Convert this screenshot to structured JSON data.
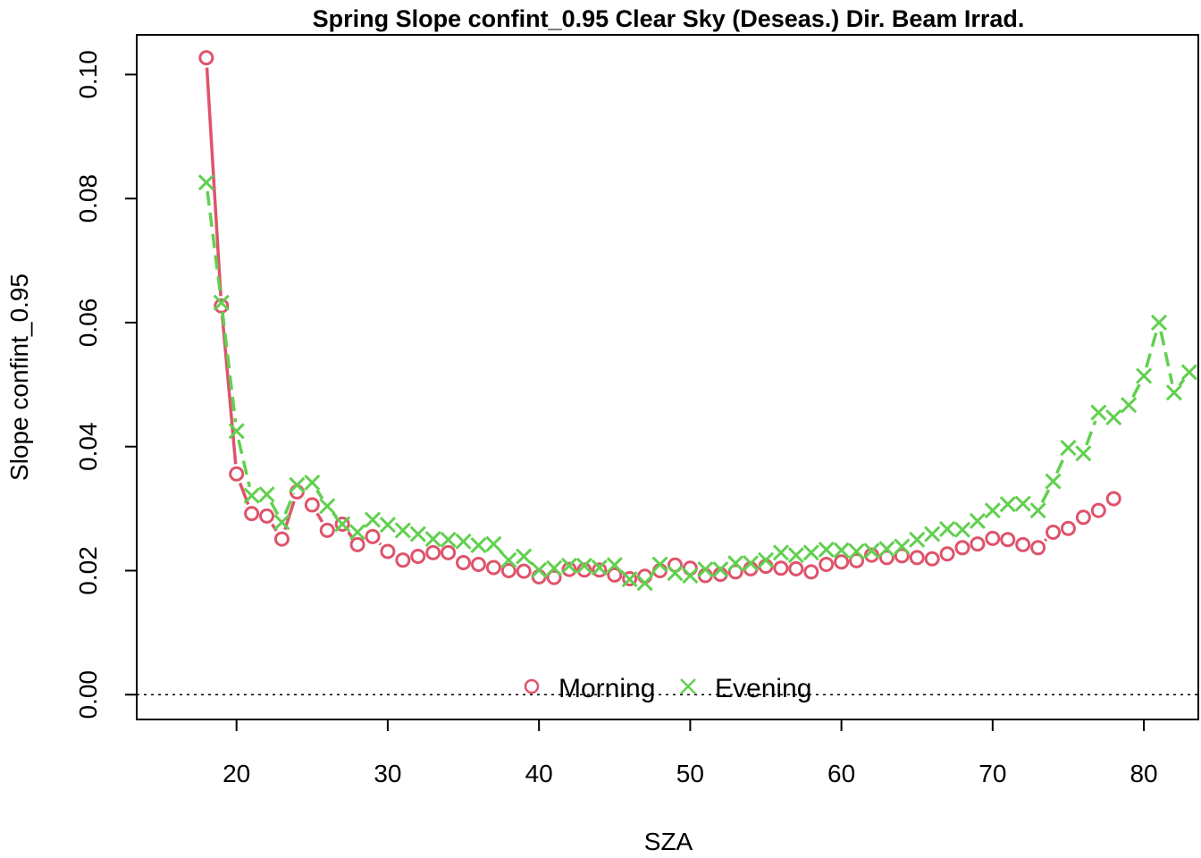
{
  "chart_data": {
    "type": "scatter",
    "title": "Spring Slope confint_0.95 Clear Sky (Deseas.) Dir. Beam Irrad.",
    "xlabel": "SZA",
    "ylabel": "Slope confint_0.95",
    "xlim": [
      13.4,
      83.6
    ],
    "ylim": [
      -0.004,
      0.1064
    ],
    "x_ticks": [
      20,
      30,
      40,
      50,
      60,
      70,
      80
    ],
    "y_ticks": [
      0.0,
      0.02,
      0.04,
      0.06,
      0.08,
      0.1
    ],
    "y_tick_labels": [
      "0.00",
      "0.02",
      "0.04",
      "0.06",
      "0.08",
      "0.10"
    ],
    "reference_line": {
      "y": 0,
      "style": "dotted"
    },
    "legend_position": "bottom-center",
    "grid": false,
    "series": [
      {
        "name": "Morning",
        "marker": "circle",
        "color": "#DF536B",
        "x": [
          18,
          19,
          20,
          21,
          22,
          23,
          24,
          25,
          26,
          27,
          28,
          29,
          30,
          31,
          32,
          33,
          34,
          35,
          36,
          37,
          38,
          39,
          40,
          41,
          42,
          43,
          44,
          45,
          46,
          47,
          48,
          49,
          50,
          51,
          52,
          53,
          54,
          55,
          56,
          57,
          58,
          59,
          60,
          61,
          62,
          63,
          64,
          65,
          66,
          67,
          68,
          69,
          70,
          71,
          72,
          73,
          74,
          75,
          76,
          77,
          78
        ],
        "y": [
          0.1027,
          0.0627,
          0.0356,
          0.0292,
          0.0288,
          0.0251,
          0.0327,
          0.0306,
          0.0265,
          0.0275,
          0.0242,
          0.0255,
          0.0231,
          0.0217,
          0.0223,
          0.0229,
          0.0229,
          0.0213,
          0.021,
          0.0205,
          0.02,
          0.0199,
          0.019,
          0.0189,
          0.0202,
          0.0201,
          0.0201,
          0.0193,
          0.0187,
          0.0191,
          0.02,
          0.0209,
          0.0204,
          0.0192,
          0.0194,
          0.0198,
          0.0203,
          0.0207,
          0.0204,
          0.0203,
          0.0198,
          0.021,
          0.0214,
          0.0216,
          0.0225,
          0.0221,
          0.0224,
          0.0221,
          0.0219,
          0.0227,
          0.0237,
          0.0243,
          0.0252,
          0.025,
          0.0242,
          0.0237,
          0.0262,
          0.0268,
          0.0286,
          0.0297,
          0.0316
        ]
      },
      {
        "name": "Evening",
        "marker": "cross",
        "color": "#61D04F",
        "x": [
          18,
          19,
          20,
          21,
          22,
          23,
          24,
          25,
          26,
          27,
          28,
          29,
          30,
          31,
          32,
          33,
          34,
          35,
          36,
          37,
          38,
          39,
          40,
          41,
          42,
          43,
          44,
          45,
          46,
          47,
          48,
          49,
          50,
          51,
          52,
          53,
          54,
          55,
          56,
          57,
          58,
          59,
          60,
          61,
          62,
          63,
          64,
          65,
          66,
          67,
          68,
          69,
          70,
          71,
          72,
          73,
          74,
          75,
          76,
          77,
          78,
          79,
          80,
          81,
          82,
          83
        ],
        "y": [
          0.0826,
          0.0632,
          0.0425,
          0.0321,
          0.0323,
          0.0278,
          0.0338,
          0.0342,
          0.0304,
          0.0275,
          0.0262,
          0.0282,
          0.0274,
          0.0265,
          0.0259,
          0.0251,
          0.025,
          0.0247,
          0.0241,
          0.0243,
          0.0217,
          0.0223,
          0.0201,
          0.0204,
          0.0208,
          0.0208,
          0.0205,
          0.0209,
          0.0186,
          0.018,
          0.021,
          0.0196,
          0.0192,
          0.0202,
          0.0202,
          0.0212,
          0.0212,
          0.0217,
          0.0229,
          0.0225,
          0.0229,
          0.0234,
          0.0233,
          0.0231,
          0.0232,
          0.0235,
          0.0239,
          0.025,
          0.0259,
          0.0267,
          0.0266,
          0.028,
          0.0297,
          0.0307,
          0.0308,
          0.0297,
          0.0344,
          0.0398,
          0.0389,
          0.0455,
          0.0447,
          0.0467,
          0.0514,
          0.06,
          0.0487,
          0.052
        ]
      }
    ]
  }
}
